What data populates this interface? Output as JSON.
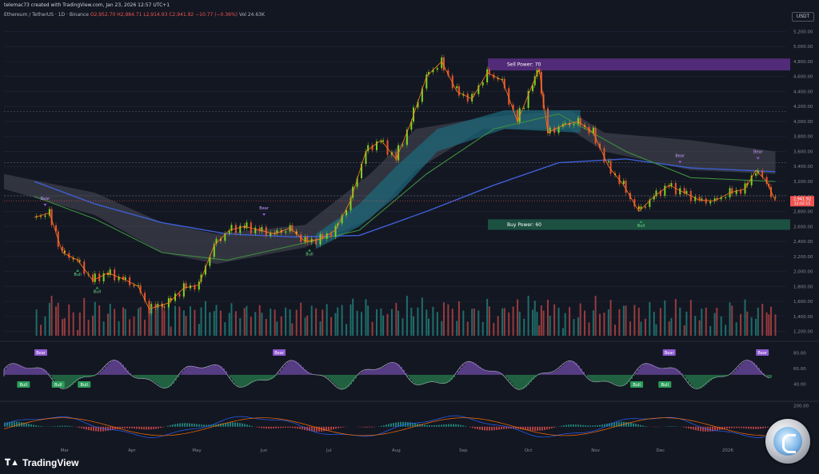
{
  "header": {
    "created_by": "telemac73 created with TradingView.com, Jan 23, 2026 12:57 UTC+1",
    "symbol": "Ethereum / TetherUS · 1D · Binance",
    "ohlc": "O2,952.70  H2,984.71  L2,914.93  C2,941.92  −10.77 (−0.36%)",
    "volume": "Vol 24.63K"
  },
  "currency": "USDT",
  "logo_text": "TradingView",
  "icons": {
    "logo": "tradingview-logo-icon",
    "badge": "coin-badge-icon"
  },
  "chart_data": {
    "type": "candlestick",
    "x_months": [
      "Mar",
      "Apr",
      "May",
      "Jun",
      "Jul",
      "Aug",
      "Sep",
      "Oct",
      "Nov",
      "Dec",
      "2026"
    ],
    "price_ticks": [
      "5,200.00",
      "5,000.00",
      "4,800.00",
      "4,600.00",
      "4,400.00",
      "4,200.00",
      "4,000.00",
      "3,800.00",
      "3,600.00",
      "3,400.00",
      "3,200.00",
      "3,000.00",
      "2,800.00",
      "2,600.00",
      "2,400.00",
      "2,200.00",
      "2,000.00",
      "1,800.00",
      "1,600.00",
      "1,400.00",
      "1,200.00"
    ],
    "ylim": [
      1100,
      5300
    ],
    "last_price": {
      "value": "2,941.92",
      "countdown": "12:02:15"
    },
    "boxes": [
      {
        "label": "Sell Power: 70",
        "color": "#5d2f86",
        "low": 4680,
        "high": 4840
      },
      {
        "label": "Buy Power: 60",
        "color": "#1f5a46",
        "low": 2555,
        "high": 2695
      }
    ],
    "closes": [
      {
        "d": "2025-02-15",
        "c": 2720
      },
      {
        "d": "2025-02-22",
        "c": 2780
      },
      {
        "d": "2025-02-28",
        "c": 2250
      },
      {
        "d": "2025-03-07",
        "c": 2150
      },
      {
        "d": "2025-03-14",
        "c": 1880
      },
      {
        "d": "2025-03-21",
        "c": 1980
      },
      {
        "d": "2025-03-28",
        "c": 1900
      },
      {
        "d": "2025-04-04",
        "c": 1800
      },
      {
        "d": "2025-04-09",
        "c": 1500
      },
      {
        "d": "2025-04-18",
        "c": 1580
      },
      {
        "d": "2025-04-25",
        "c": 1780
      },
      {
        "d": "2025-05-02",
        "c": 1820
      },
      {
        "d": "2025-05-09",
        "c": 2350
      },
      {
        "d": "2025-05-16",
        "c": 2550
      },
      {
        "d": "2025-05-23",
        "c": 2600
      },
      {
        "d": "2025-05-30",
        "c": 2550
      },
      {
        "d": "2025-06-06",
        "c": 2500
      },
      {
        "d": "2025-06-13",
        "c": 2580
      },
      {
        "d": "2025-06-20",
        "c": 2400
      },
      {
        "d": "2025-06-27",
        "c": 2430
      },
      {
        "d": "2025-07-04",
        "c": 2550
      },
      {
        "d": "2025-07-11",
        "c": 2950
      },
      {
        "d": "2025-07-18",
        "c": 3600
      },
      {
        "d": "2025-07-25",
        "c": 3750
      },
      {
        "d": "2025-08-01",
        "c": 3500
      },
      {
        "d": "2025-08-08",
        "c": 4000
      },
      {
        "d": "2025-08-15",
        "c": 4600
      },
      {
        "d": "2025-08-22",
        "c": 4800
      },
      {
        "d": "2025-08-29",
        "c": 4400
      },
      {
        "d": "2025-09-05",
        "c": 4300
      },
      {
        "d": "2025-09-12",
        "c": 4650
      },
      {
        "d": "2025-09-19",
        "c": 4550
      },
      {
        "d": "2025-09-26",
        "c": 4000
      },
      {
        "d": "2025-10-03",
        "c": 4500
      },
      {
        "d": "2025-10-06",
        "c": 4700
      },
      {
        "d": "2025-10-10",
        "c": 3850
      },
      {
        "d": "2025-10-17",
        "c": 3950
      },
      {
        "d": "2025-10-24",
        "c": 4000
      },
      {
        "d": "2025-10-31",
        "c": 3850
      },
      {
        "d": "2025-11-07",
        "c": 3400
      },
      {
        "d": "2025-11-14",
        "c": 3150
      },
      {
        "d": "2025-11-21",
        "c": 2800
      },
      {
        "d": "2025-11-28",
        "c": 3000
      },
      {
        "d": "2025-12-05",
        "c": 3150
      },
      {
        "d": "2025-12-12",
        "c": 3050
      },
      {
        "d": "2025-12-19",
        "c": 2950
      },
      {
        "d": "2025-12-26",
        "c": 2940
      },
      {
        "d": "2026-01-02",
        "c": 3050
      },
      {
        "d": "2026-01-09",
        "c": 3100
      },
      {
        "d": "2026-01-14",
        "c": 3350
      },
      {
        "d": "2026-01-19",
        "c": 3200
      },
      {
        "d": "2026-01-23",
        "c": 2942
      }
    ],
    "ma_long": [
      {
        "d": "2025-02-15",
        "c": 3200
      },
      {
        "d": "2025-03-15",
        "c": 2900
      },
      {
        "d": "2025-04-15",
        "c": 2650
      },
      {
        "d": "2025-05-15",
        "c": 2500
      },
      {
        "d": "2025-06-15",
        "c": 2460
      },
      {
        "d": "2025-07-15",
        "c": 2480
      },
      {
        "d": "2025-08-15",
        "c": 2800
      },
      {
        "d": "2025-09-15",
        "c": 3150
      },
      {
        "d": "2025-10-15",
        "c": 3450
      },
      {
        "d": "2025-11-15",
        "c": 3500
      },
      {
        "d": "2025-12-15",
        "c": 3380
      },
      {
        "d": "2026-01-23",
        "c": 3330
      }
    ],
    "ma_mid": [
      {
        "d": "2025-02-15",
        "c": 3000
      },
      {
        "d": "2025-03-15",
        "c": 2700
      },
      {
        "d": "2025-04-15",
        "c": 2250
      },
      {
        "d": "2025-05-15",
        "c": 2150
      },
      {
        "d": "2025-06-15",
        "c": 2350
      },
      {
        "d": "2025-07-15",
        "c": 2550
      },
      {
        "d": "2025-08-15",
        "c": 3300
      },
      {
        "d": "2025-09-15",
        "c": 3900
      },
      {
        "d": "2025-10-15",
        "c": 4100
      },
      {
        "d": "2025-11-15",
        "c": 3600
      },
      {
        "d": "2025-12-15",
        "c": 3250
      },
      {
        "d": "2026-01-23",
        "c": 3200
      }
    ],
    "signals": [
      {
        "label": "Bear",
        "type": "bear",
        "d": "2025-02-20",
        "c": 2850
      },
      {
        "label": "Bull",
        "type": "bull",
        "d": "2025-03-07",
        "c": 2050
      },
      {
        "label": "Bull",
        "type": "bull",
        "d": "2025-03-16",
        "c": 1820
      },
      {
        "label": "Bear",
        "type": "bear",
        "d": "2025-06-01",
        "c": 2720
      },
      {
        "label": "Bull",
        "type": "bull",
        "d": "2025-06-22",
        "c": 2320
      },
      {
        "label": "Bull",
        "type": "bull",
        "d": "2025-11-22",
        "c": 2700
      },
      {
        "label": "Bear",
        "type": "bear",
        "d": "2025-12-10",
        "c": 3420
      },
      {
        "label": "Bear",
        "type": "bear",
        "d": "2026-01-15",
        "c": 3470
      }
    ],
    "oscillator": {
      "ticks": [
        "80.00",
        "60.00",
        "40.00"
      ],
      "signals": [
        {
          "label": "Bear",
          "type": "bear",
          "d": "2025-02-18"
        },
        {
          "label": "Bull",
          "type": "bull",
          "d": "2025-02-10"
        },
        {
          "label": "Bull",
          "type": "bull",
          "d": "2025-02-26"
        },
        {
          "label": "Bull",
          "type": "bull",
          "d": "2025-03-10"
        },
        {
          "label": "Bear",
          "type": "bear",
          "d": "2025-06-08"
        },
        {
          "label": "Bull",
          "type": "bull",
          "d": "2025-11-20"
        },
        {
          "label": "Bull",
          "type": "bull",
          "d": "2025-12-03"
        },
        {
          "label": "Bear",
          "type": "bear",
          "d": "2025-12-05"
        },
        {
          "label": "Bear",
          "type": "bear",
          "d": "2026-01-17"
        }
      ]
    },
    "macd": {
      "ticks": [
        "200.00",
        "0.00"
      ]
    }
  }
}
